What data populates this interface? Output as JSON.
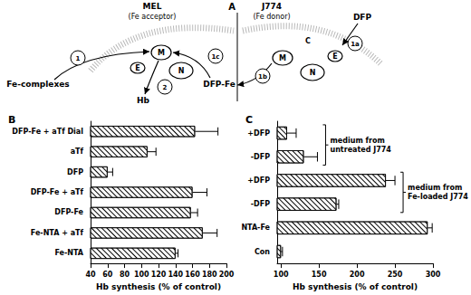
{
  "diagram": {
    "panel": "A",
    "cells": [
      {
        "name": "MEL",
        "role": "(Fe acceptor)",
        "organelles": [
          "M",
          "E",
          "N"
        ]
      },
      {
        "name": "J774",
        "role": "(Fe donor)",
        "organelles": [
          "C",
          "M",
          "E",
          "N"
        ]
      }
    ],
    "labels": {
      "input": "Fe-complexes",
      "product": "Hb",
      "chelator": "DFP",
      "complex": "DFP-Fe"
    },
    "steps": [
      "1",
      "2",
      "1c",
      "1b",
      "1a"
    ]
  },
  "chart_data": [
    {
      "type": "bar",
      "title": "B",
      "orientation": "horizontal",
      "categories": [
        "Fe-NTA",
        "Fe-NTA + aTf",
        "DFP-Fe",
        "DFP-Fe + aTf",
        "DFP",
        "aTf",
        "DFP-Fe + aTf Dial"
      ],
      "values": [
        140,
        172,
        158,
        160,
        60,
        107,
        163
      ],
      "errors": [
        3,
        17,
        8,
        17,
        6,
        10,
        27
      ],
      "x_label": "Hb synthesis (% of control)",
      "xlim": [
        40,
        200
      ],
      "xticks": [
        40,
        60,
        80,
        100,
        120,
        140,
        160,
        180,
        200
      ],
      "color": "#000000",
      "grid": false
    },
    {
      "type": "bar",
      "title": "C",
      "orientation": "horizontal",
      "categories": [
        "Con",
        "NTA-Fe",
        "-DFP",
        "+DFP",
        "-DFP",
        "+DFP"
      ],
      "values": [
        100,
        293,
        173,
        238,
        130,
        108
      ],
      "errors": [
        2,
        6,
        3,
        12,
        18,
        12
      ],
      "x_label": "Hb synthesis (% of control)",
      "xlim": [
        95,
        300
      ],
      "xticks": [
        100,
        150,
        200,
        250,
        300
      ],
      "color": "#000000",
      "grid": false,
      "annotations": [
        {
          "text": [
            "medium from",
            "untreated J774"
          ],
          "span": [
            4,
            5
          ]
        },
        {
          "text": [
            "medium from",
            "Fe-loaded J774"
          ],
          "span": [
            2,
            3
          ]
        }
      ]
    }
  ]
}
